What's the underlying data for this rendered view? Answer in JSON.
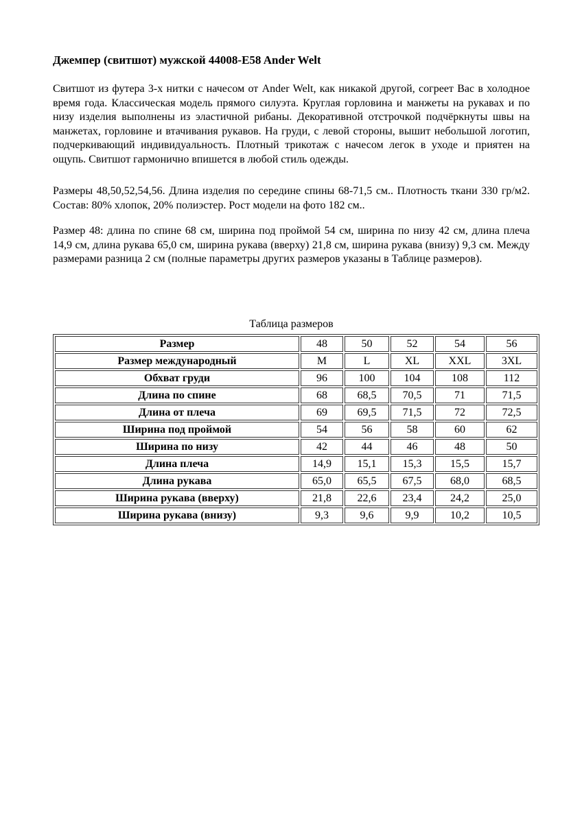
{
  "title": "Джемпер (свитшот) мужской 44008-E58 Ander Welt",
  "paragraphs": [
    "Свитшот из футера 3-х нитки с начесом от Ander Welt, как никакой другой, согреет Вас в холодное время года. Классическая модель прямого силуэта. Круглая горловина и манжеты на рукавах и по низу изделия выполнены из эластичной рибаны. Декоративной отстрочкой подчёркнуты швы на манжетах, горловине и втачивания рукавов. На груди, с левой стороны, вышит небольшой логотип, подчеркивающий индивидуальность. Плотный трикотаж с начесом легок в уходе и приятен на ощупь. Свитшот гармонично впишется в любой стиль одежды.",
    "Размеры 48,50,52,54,56. Длина изделия по середине спины 68-71,5 см.. Плотность ткани 330 гр/м2. Состав: 80% хлопок, 20% полиэстер. Рост модели на фото 182 см..",
    "Размер 48: длина по спине 68 см, ширина под проймой 54 см, ширина по низу 42 см, длина плеча 14,9 см, длина рукава 65,0 см, ширина рукава (вверху) 21,8 см, ширина рукава (внизу) 9,3 см. Между размерами разница 2 см (полные параметры других размеров указаны в Таблице размеров)."
  ],
  "table": {
    "caption": "Таблица размеров",
    "rows": [
      {
        "label": "Размер",
        "values": [
          "48",
          "50",
          "52",
          "54",
          "56"
        ]
      },
      {
        "label": "Размер международный",
        "values": [
          "M",
          "L",
          "XL",
          "XXL",
          "3XL"
        ]
      },
      {
        "label": "Обхват груди",
        "values": [
          "96",
          "100",
          "104",
          "108",
          "112"
        ]
      },
      {
        "label": "Длина по спине",
        "values": [
          "68",
          "68,5",
          "70,5",
          "71",
          "71,5"
        ]
      },
      {
        "label": "Длина от плеча",
        "values": [
          "69",
          "69,5",
          "71,5",
          "72",
          "72,5"
        ]
      },
      {
        "label": "Ширина под проймой",
        "values": [
          "54",
          "56",
          "58",
          "60",
          "62"
        ]
      },
      {
        "label": "Ширина по низу",
        "values": [
          "42",
          "44",
          "46",
          "48",
          "50"
        ]
      },
      {
        "label": "Длина плеча",
        "values": [
          "14,9",
          "15,1",
          "15,3",
          "15,5",
          "15,7"
        ]
      },
      {
        "label": "Длина рукава",
        "values": [
          "65,0",
          "65,5",
          "67,5",
          "68,0",
          "68,5"
        ]
      },
      {
        "label": "Ширина рукава (вверху)",
        "values": [
          "21,8",
          "22,6",
          "23,4",
          "24,2",
          "25,0"
        ]
      },
      {
        "label": "Ширина рукава (внизу)",
        "values": [
          "9,3",
          "9,6",
          "9,9",
          "10,2",
          "10,5"
        ]
      }
    ]
  }
}
